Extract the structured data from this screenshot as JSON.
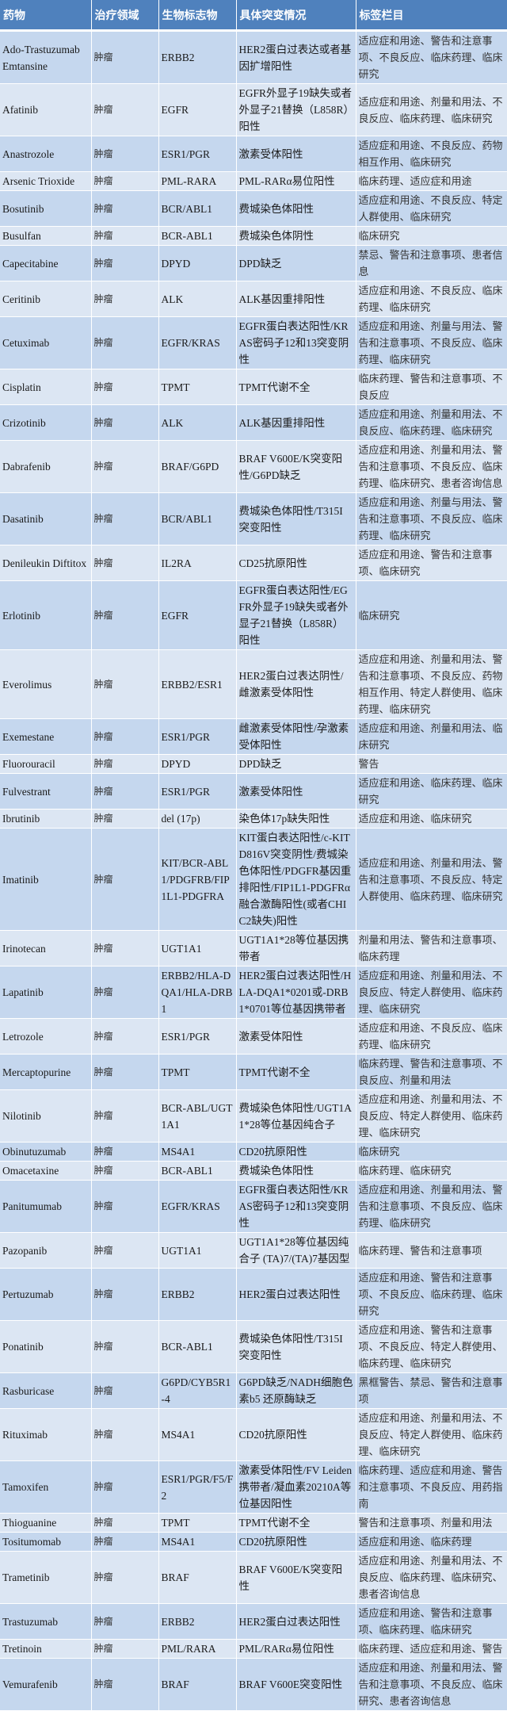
{
  "header": [
    "药物",
    "治疗领域",
    "生物标志物",
    "具体突变情况",
    "标签栏目"
  ],
  "rows": [
    [
      "Ado-Trastuzumab Emtansine",
      "肿瘤",
      "ERBB2",
      "HER2蛋白过表达或者基因扩增阳性",
      "适应症和用途、警告和注意事项、不良反应、临床药理、临床研究"
    ],
    [
      "Afatinib",
      "肿瘤",
      "EGFR",
      "EGFR外显子19缺失或者外显子21替换（L858R）阳性",
      "适应症和用途、剂量和用法、不良反应、临床药理、临床研究"
    ],
    [
      "Anastrozole",
      "肿瘤",
      "ESR1/PGR",
      "激素受体阳性",
      "适应症和用途、不良反应、药物相互作用、临床研究"
    ],
    [
      "Arsenic Trioxide",
      "肿瘤",
      "PML-RARA",
      "PML-RARα易位阳性",
      "临床药理、适应症和用途"
    ],
    [
      "Bosutinib",
      "肿瘤",
      "BCR/ABL1",
      "费城染色体阳性",
      "适应症和用途、不良反应、特定人群使用、临床研究"
    ],
    [
      "Busulfan",
      "肿瘤",
      "BCR-ABL1",
      "费城染色体阴性",
      "临床研究"
    ],
    [
      "Capecitabine",
      "肿瘤",
      "DPYD",
      "DPD缺乏",
      "禁忌、警告和注意事项、患者信息"
    ],
    [
      "Ceritinib",
      "肿瘤",
      "ALK",
      "ALK基因重排阳性",
      "适应症和用途、不良反应、临床药理、临床研究"
    ],
    [
      "Cetuximab",
      "肿瘤",
      "EGFR/KRAS",
      "EGFR蛋白表达阳性/KRAS密码子12和13突变阴性",
      "适应症和用途、剂量与用法、警告和注意事项、不良反应、临床药理、临床研究"
    ],
    [
      "Cisplatin",
      "肿瘤",
      "TPMT",
      "TPMT代谢不全",
      "临床药理、警告和注意事项、不良反应"
    ],
    [
      "Crizotinib",
      "肿瘤",
      "ALK",
      "ALK基因重排阳性",
      "适应症和用途、剂量和用法、不良反应、临床药理、临床研究"
    ],
    [
      "Dabrafenib",
      "肿瘤",
      "BRAF/G6PD",
      "BRAF V600E/K突变阳性/G6PD缺乏",
      "适应症和用途、剂量和用法、警告和注意事项、不良反应、临床药理、临床研究、患者咨询信息"
    ],
    [
      "Dasatinib",
      "肿瘤",
      "BCR/ABL1",
      "费城染色体阳性/T315I突变阳性",
      "适应症和用途、剂量与用法、警告和注意事项、不良反应、临床药理、临床研究"
    ],
    [
      "Denileukin Diftitox",
      "肿瘤",
      "IL2RA",
      "CD25抗原阳性",
      "适应症和用途、警告和注意事项、临床研究"
    ],
    [
      "Erlotinib",
      "肿瘤",
      "EGFR",
      "EGFR蛋白表达阳性/EGFR外显子19缺失或者外显子21替换（L858R）阳性",
      "临床研究"
    ],
    [
      "Everolimus",
      "肿瘤",
      "ERBB2/ESR1",
      "HER2蛋白过表达阴性/雌激素受体阳性",
      "适应症和用途、剂量和用法、警告和注意事项、不良反应、药物相互作用、特定人群使用、临床药理、临床研究"
    ],
    [
      "Exemestane",
      "肿瘤",
      "ESR1/PGR",
      "雌激素受体阳性/孕激素受体阳性",
      "适应症和用途、剂量和用法、临床研究"
    ],
    [
      "Fluorouracil",
      "肿瘤",
      "DPYD",
      "DPD缺乏",
      "警告"
    ],
    [
      "Fulvestrant",
      "肿瘤",
      "ESR1/PGR",
      "激素受体阳性",
      "适应症和用途、临床药理、临床研究"
    ],
    [
      "Ibrutinib",
      "肿瘤",
      "del (17p)",
      "染色体17p缺失阳性",
      "适应症和用途、临床研究"
    ],
    [
      "Imatinib",
      "肿瘤",
      "KIT/BCR-ABL1/PDGFRB/FIP1L1-PDGFRA",
      "KIT蛋白表达阳性/c-KIT D816V突变阴性/费城染色体阳性/PDGFR基因重排阳性/FIP1L1-PDGFRα融合激酶阳性(或者CHIC2缺失)阳性",
      "适应症和用途、剂量和用法、警告和注意事项、不良反应、特定人群使用、临床药理、临床研究"
    ],
    [
      "Irinotecan",
      "肿瘤",
      "UGT1A1",
      "UGT1A1*28等位基因携带者",
      "剂量和用法、警告和注意事项、临床药理"
    ],
    [
      "Lapatinib",
      "肿瘤",
      "ERBB2/HLA-DQA1/HLA-DRB1",
      "HER2蛋白过表达阳性/HLA-DQA1*0201或-DRB1*0701等位基因携带者",
      "适应症和用途、剂量和用法、不良反应、特定人群使用、临床药理、临床研究"
    ],
    [
      "Letrozole",
      "肿瘤",
      "ESR1/PGR",
      "激素受体阳性",
      "适应症和用途、不良反应、临床药理、临床研究"
    ],
    [
      "Mercaptopurine",
      "肿瘤",
      "TPMT",
      "TPMT代谢不全",
      "临床药理、警告和注意事项、不良反应、剂量和用法"
    ],
    [
      "Nilotinib",
      "肿瘤",
      "BCR-ABL/UGT1A1",
      "费城染色体阳性/UGT1A1*28等位基因纯合子",
      "适应症和用途、剂量和用法、不良反应、特定人群使用、临床药理、临床研究"
    ],
    [
      "Obinutuzumab",
      "肿瘤",
      "MS4A1",
      "CD20抗原阳性",
      "临床研究"
    ],
    [
      "Omacetaxine",
      "肿瘤",
      "BCR-ABL1",
      "费城染色体阳性",
      "临床药理、临床研究"
    ],
    [
      "Panitumumab",
      "肿瘤",
      "EGFR/KRAS",
      "EGFR蛋白表达阳性/KRAS密码子12和13突变阴性",
      "适应症和用途、剂量和用法、警告和注意事项、不良反应、临床药理、临床研究"
    ],
    [
      "Pazopanib",
      "肿瘤",
      "UGT1A1",
      "UGT1A1*28等位基因纯合子 (TA)7/(TA)7基因型",
      "临床药理、警告和注意事项"
    ],
    [
      "Pertuzumab",
      "肿瘤",
      "ERBB2",
      "HER2蛋白过表达阳性",
      "适应症和用途、警告和注意事项、不良反应、临床药理、临床研究"
    ],
    [
      "Ponatinib",
      "肿瘤",
      "BCR-ABL1",
      "费城染色体阳性/T315I突变阳性",
      "适应症和用途、警告和注意事项、不良反应、特定人群使用、临床药理、临床研究"
    ],
    [
      "Rasburicase",
      "肿瘤",
      "G6PD/CYB5R1-4",
      "G6PD缺乏/NADH细胞色素b5 还原酶缺乏",
      "黑框警告、禁忌、警告和注意事项"
    ],
    [
      "Rituximab",
      "肿瘤",
      "MS4A1",
      "CD20抗原阳性",
      "适应症和用途、剂量和用法、不良反应、特定人群使用、临床药理、临床研究"
    ],
    [
      "Tamoxifen",
      "肿瘤",
      "ESR1/PGR/F5/F2",
      "激素受体阳性/FV Leiden携带者/凝血素20210A等位基因阳性",
      "临床药理、适应症和用途、警告和注意事项、不良反应、用药指南"
    ],
    [
      "Thioguanine",
      "肿瘤",
      "TPMT",
      "TPMT代谢不全",
      "警告和注意事项、剂量和用法"
    ],
    [
      "Tositumomab",
      "肿瘤",
      "MS4A1",
      "CD20抗原阳性",
      "适应症和用途、临床药理"
    ],
    [
      "Trametinib",
      "肿瘤",
      "BRAF",
      "BRAF V600E/K突变阳性",
      "适应症和用途、剂量和用法、不良反应、临床药理、临床研究、患者咨询信息"
    ],
    [
      "Trastuzumab",
      "肿瘤",
      "ERBB2",
      "HER2蛋白过表达阳性",
      "适应症和用途、警告和注意事项、临床药理、临床研究"
    ],
    [
      "Tretinoin",
      "肿瘤",
      "PML/RARA",
      "PML/RARα易位阳性",
      "临床药理、适应症和用途、警告"
    ],
    [
      "Vemurafenib",
      "肿瘤",
      "BRAF",
      "BRAF V600E突变阳性",
      "适应症和用途、剂量和用法、警告和注意事项、不良反应、临床研究、患者咨询信息"
    ]
  ],
  "colors": {
    "header_bg": "#4f81bd",
    "row_dark": "#c5d7ee",
    "row_light": "#dce6f3"
  }
}
